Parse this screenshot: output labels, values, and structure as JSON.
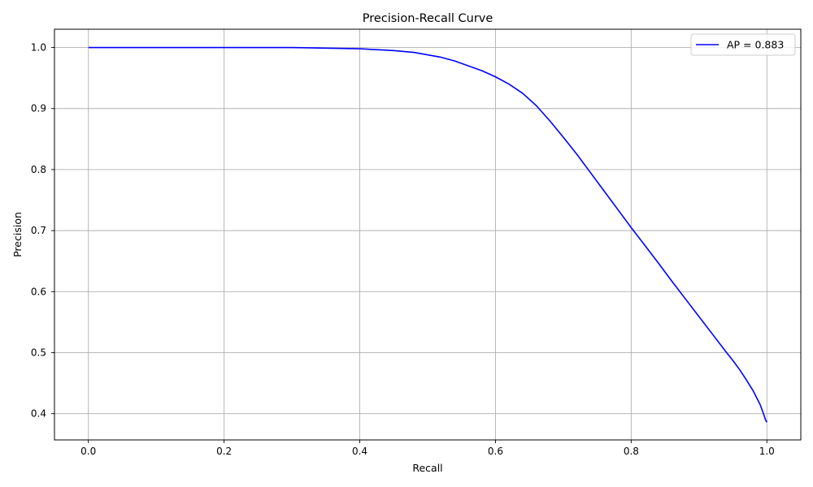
{
  "chart_data": {
    "type": "line",
    "title": "Precision-Recall Curve",
    "xlabel": "Recall",
    "ylabel": "Precision",
    "xlim": [
      -0.05,
      1.05
    ],
    "ylim": [
      0.357,
      1.03
    ],
    "xticks": [
      0.0,
      0.2,
      0.4,
      0.6,
      0.8,
      1.0
    ],
    "xtick_labels": [
      "0.0",
      "0.2",
      "0.4",
      "0.6",
      "0.8",
      "1.0"
    ],
    "yticks": [
      0.4,
      0.5,
      0.6,
      0.7,
      0.8,
      0.9,
      1.0
    ],
    "ytick_labels": [
      "0.4",
      "0.5",
      "0.6",
      "0.7",
      "0.8",
      "0.9",
      "1.0"
    ],
    "grid": true,
    "legend": {
      "position": "top-right"
    },
    "series": [
      {
        "name": "AP = 0.883",
        "color": "#0000ff",
        "x": [
          0.0,
          0.1,
          0.2,
          0.3,
          0.35,
          0.4,
          0.45,
          0.48,
          0.5,
          0.52,
          0.54,
          0.56,
          0.58,
          0.6,
          0.62,
          0.64,
          0.66,
          0.68,
          0.7,
          0.72,
          0.74,
          0.76,
          0.78,
          0.8,
          0.82,
          0.84,
          0.86,
          0.88,
          0.9,
          0.92,
          0.94,
          0.95,
          0.96,
          0.97,
          0.98,
          0.99,
          0.995,
          0.998,
          1.0
        ],
        "y": [
          1.0,
          1.0,
          1.0,
          1.0,
          0.999,
          0.998,
          0.995,
          0.992,
          0.988,
          0.984,
          0.978,
          0.97,
          0.962,
          0.952,
          0.94,
          0.925,
          0.905,
          0.88,
          0.853,
          0.825,
          0.795,
          0.765,
          0.735,
          0.705,
          0.676,
          0.647,
          0.617,
          0.588,
          0.559,
          0.53,
          0.501,
          0.487,
          0.472,
          0.455,
          0.437,
          0.415,
          0.4,
          0.39,
          0.386
        ]
      }
    ]
  }
}
